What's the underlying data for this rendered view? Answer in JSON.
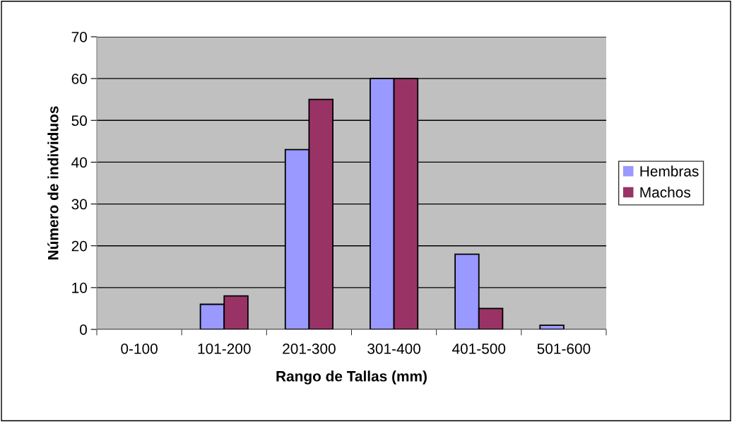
{
  "chart_data": {
    "type": "bar",
    "xlabel": "Rango de Tallas (mm)",
    "ylabel": "Número de individuos",
    "categories": [
      "0-100",
      "101-200",
      "201-300",
      "301-400",
      "401-500",
      "501-600"
    ],
    "series": [
      {
        "name": "Hembras",
        "color": "#9999ff",
        "values": [
          0,
          6,
          43,
          60,
          18,
          1
        ]
      },
      {
        "name": "Machos",
        "color": "#993366",
        "values": [
          0,
          8,
          55,
          60,
          5,
          0
        ]
      }
    ],
    "ylim": [
      0,
      70
    ],
    "yticks": [
      0,
      10,
      20,
      30,
      40,
      50,
      60,
      70
    ],
    "grid": "y",
    "legend": "right"
  }
}
